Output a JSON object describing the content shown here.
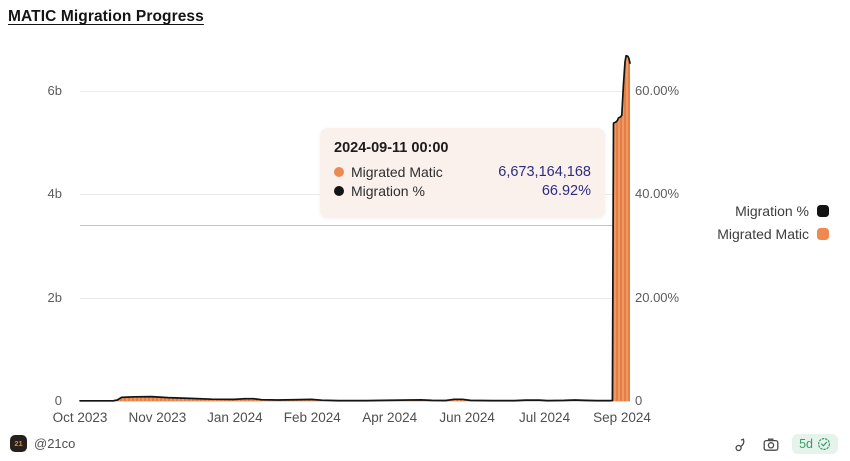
{
  "title": "MATIC Migration Progress",
  "chart_data": {
    "type": "combo-area-line-dual-axis",
    "title": "MATIC Migration Progress",
    "grid": true,
    "legend_position": "right",
    "series": [
      {
        "name": "Migration %",
        "type": "line",
        "axis": "right",
        "color": "#141414"
      },
      {
        "name": "Migrated Matic",
        "type": "area-bars",
        "axis": "left",
        "color": "#ed8a4f"
      }
    ],
    "left_axis": {
      "unit": "MATIC (billions)",
      "range_b": [
        0,
        6.9
      ],
      "ticks": [
        {
          "label": "0",
          "value": 0
        },
        {
          "label": "2b",
          "value": 2
        },
        {
          "label": "4b",
          "value": 4
        },
        {
          "label": "6b",
          "value": 6
        }
      ]
    },
    "right_axis": {
      "unit": "percent",
      "range_pct": [
        0,
        69
      ],
      "ticks": [
        {
          "label": "0",
          "value": 0
        },
        {
          "label": "20.00%",
          "value": 20
        },
        {
          "label": "40.00%",
          "value": 40
        },
        {
          "label": "60.00%",
          "value": 60
        }
      ]
    },
    "x_axis": {
      "labels": [
        "Oct 2023",
        "Nov 2023",
        "Jan 2024",
        "Feb 2024",
        "Apr 2024",
        "Jun 2024",
        "Jul 2024",
        "Sep 2024"
      ]
    },
    "hovered_point": {
      "date": "2024-09-11 00:00",
      "migrated_matic": 6673164168,
      "migration_pct": 66.92
    },
    "points": [
      {
        "t": 0.0,
        "migrated_b": 0.004,
        "pct": 0.04
      },
      {
        "t": 0.06,
        "migrated_b": 0.004,
        "pct": 0.04
      },
      {
        "t": 0.068,
        "migrated_b": 0.02,
        "pct": 0.2
      },
      {
        "t": 0.075,
        "migrated_b": 0.07,
        "pct": 0.7
      },
      {
        "t": 0.1,
        "migrated_b": 0.082,
        "pct": 0.82
      },
      {
        "t": 0.13,
        "migrated_b": 0.085,
        "pct": 0.85
      },
      {
        "t": 0.145,
        "migrated_b": 0.075,
        "pct": 0.75
      },
      {
        "t": 0.16,
        "migrated_b": 0.065,
        "pct": 0.65
      },
      {
        "t": 0.2,
        "migrated_b": 0.05,
        "pct": 0.5
      },
      {
        "t": 0.24,
        "migrated_b": 0.035,
        "pct": 0.35
      },
      {
        "t": 0.28,
        "migrated_b": 0.03,
        "pct": 0.3
      },
      {
        "t": 0.3,
        "migrated_b": 0.045,
        "pct": 0.45
      },
      {
        "t": 0.315,
        "migrated_b": 0.045,
        "pct": 0.45
      },
      {
        "t": 0.33,
        "migrated_b": 0.025,
        "pct": 0.25
      },
      {
        "t": 0.36,
        "migrated_b": 0.02,
        "pct": 0.2
      },
      {
        "t": 0.4,
        "migrated_b": 0.028,
        "pct": 0.28
      },
      {
        "t": 0.42,
        "migrated_b": 0.03,
        "pct": 0.3
      },
      {
        "t": 0.44,
        "migrated_b": 0.015,
        "pct": 0.15
      },
      {
        "t": 0.47,
        "migrated_b": 0.008,
        "pct": 0.08
      },
      {
        "t": 0.52,
        "migrated_b": 0.008,
        "pct": 0.08
      },
      {
        "t": 0.55,
        "migrated_b": 0.012,
        "pct": 0.12
      },
      {
        "t": 0.6,
        "migrated_b": 0.02,
        "pct": 0.2
      },
      {
        "t": 0.62,
        "migrated_b": 0.022,
        "pct": 0.22
      },
      {
        "t": 0.64,
        "migrated_b": 0.012,
        "pct": 0.12
      },
      {
        "t": 0.665,
        "migrated_b": 0.01,
        "pct": 0.1
      },
      {
        "t": 0.68,
        "migrated_b": 0.032,
        "pct": 0.32
      },
      {
        "t": 0.695,
        "migrated_b": 0.032,
        "pct": 0.32
      },
      {
        "t": 0.71,
        "migrated_b": 0.012,
        "pct": 0.12
      },
      {
        "t": 0.75,
        "migrated_b": 0.008,
        "pct": 0.08
      },
      {
        "t": 0.79,
        "migrated_b": 0.008,
        "pct": 0.08
      },
      {
        "t": 0.81,
        "migrated_b": 0.018,
        "pct": 0.18
      },
      {
        "t": 0.835,
        "migrated_b": 0.018,
        "pct": 0.18
      },
      {
        "t": 0.85,
        "migrated_b": 0.008,
        "pct": 0.08
      },
      {
        "t": 0.88,
        "migrated_b": 0.012,
        "pct": 0.12
      },
      {
        "t": 0.9,
        "migrated_b": 0.02,
        "pct": 0.2
      },
      {
        "t": 0.92,
        "migrated_b": 0.012,
        "pct": 0.12
      },
      {
        "t": 0.94,
        "migrated_b": 0.008,
        "pct": 0.08
      },
      {
        "t": 0.962,
        "migrated_b": 0.008,
        "pct": 0.08
      },
      {
        "t": 0.968,
        "migrated_b": 0.01,
        "pct": 0.1
      },
      {
        "t": 0.97,
        "migrated_b": 5.37,
        "pct": 53.86
      },
      {
        "t": 0.974,
        "migrated_b": 5.39,
        "pct": 54.06
      },
      {
        "t": 0.977,
        "migrated_b": 5.42,
        "pct": 54.36
      },
      {
        "t": 0.979,
        "migrated_b": 5.47,
        "pct": 54.86
      },
      {
        "t": 0.983,
        "migrated_b": 5.49,
        "pct": 55.06
      },
      {
        "t": 0.985,
        "migrated_b": 5.52,
        "pct": 55.36
      },
      {
        "t": 0.988,
        "migrated_b": 6.1,
        "pct": 61.18
      },
      {
        "t": 0.991,
        "migrated_b": 6.55,
        "pct": 65.69
      },
      {
        "t": 0.993,
        "migrated_b": 6.673,
        "pct": 66.92
      },
      {
        "t": 0.996,
        "migrated_b": 6.66,
        "pct": 66.79
      },
      {
        "t": 0.998,
        "migrated_b": 6.62,
        "pct": 66.39
      },
      {
        "t": 1.0,
        "migrated_b": 6.53,
        "pct": 65.49
      }
    ]
  },
  "tooltip": {
    "date": "2024-09-11 00:00",
    "rows": [
      {
        "label": "Migrated Matic",
        "value": "6,673,164,168",
        "color": "#ed8a4f"
      },
      {
        "label": "Migration %",
        "value": "66.92%",
        "color": "#141414"
      }
    ]
  },
  "legend": {
    "items": [
      {
        "label": "Migration %",
        "color": "#141414"
      },
      {
        "label": "Migrated Matic",
        "color": "#ee8a4f"
      }
    ]
  },
  "footer": {
    "avatar_text": "21",
    "author": "@21co",
    "badge_label": "5d",
    "icons": [
      "fork-icon",
      "camera-icon",
      "verified-check-icon"
    ]
  },
  "colors": {
    "bar_fill": "#ef9867",
    "bar_stripe": "#e67e40",
    "line": "#141414",
    "tooltip_bg": "#faf0ec",
    "tooltip_value": "#2d2d80",
    "badge_bg": "#e6f3eb",
    "badge_text": "#3a9e68",
    "gridline": "#ececec",
    "crosshair": "#c4c4c4"
  }
}
